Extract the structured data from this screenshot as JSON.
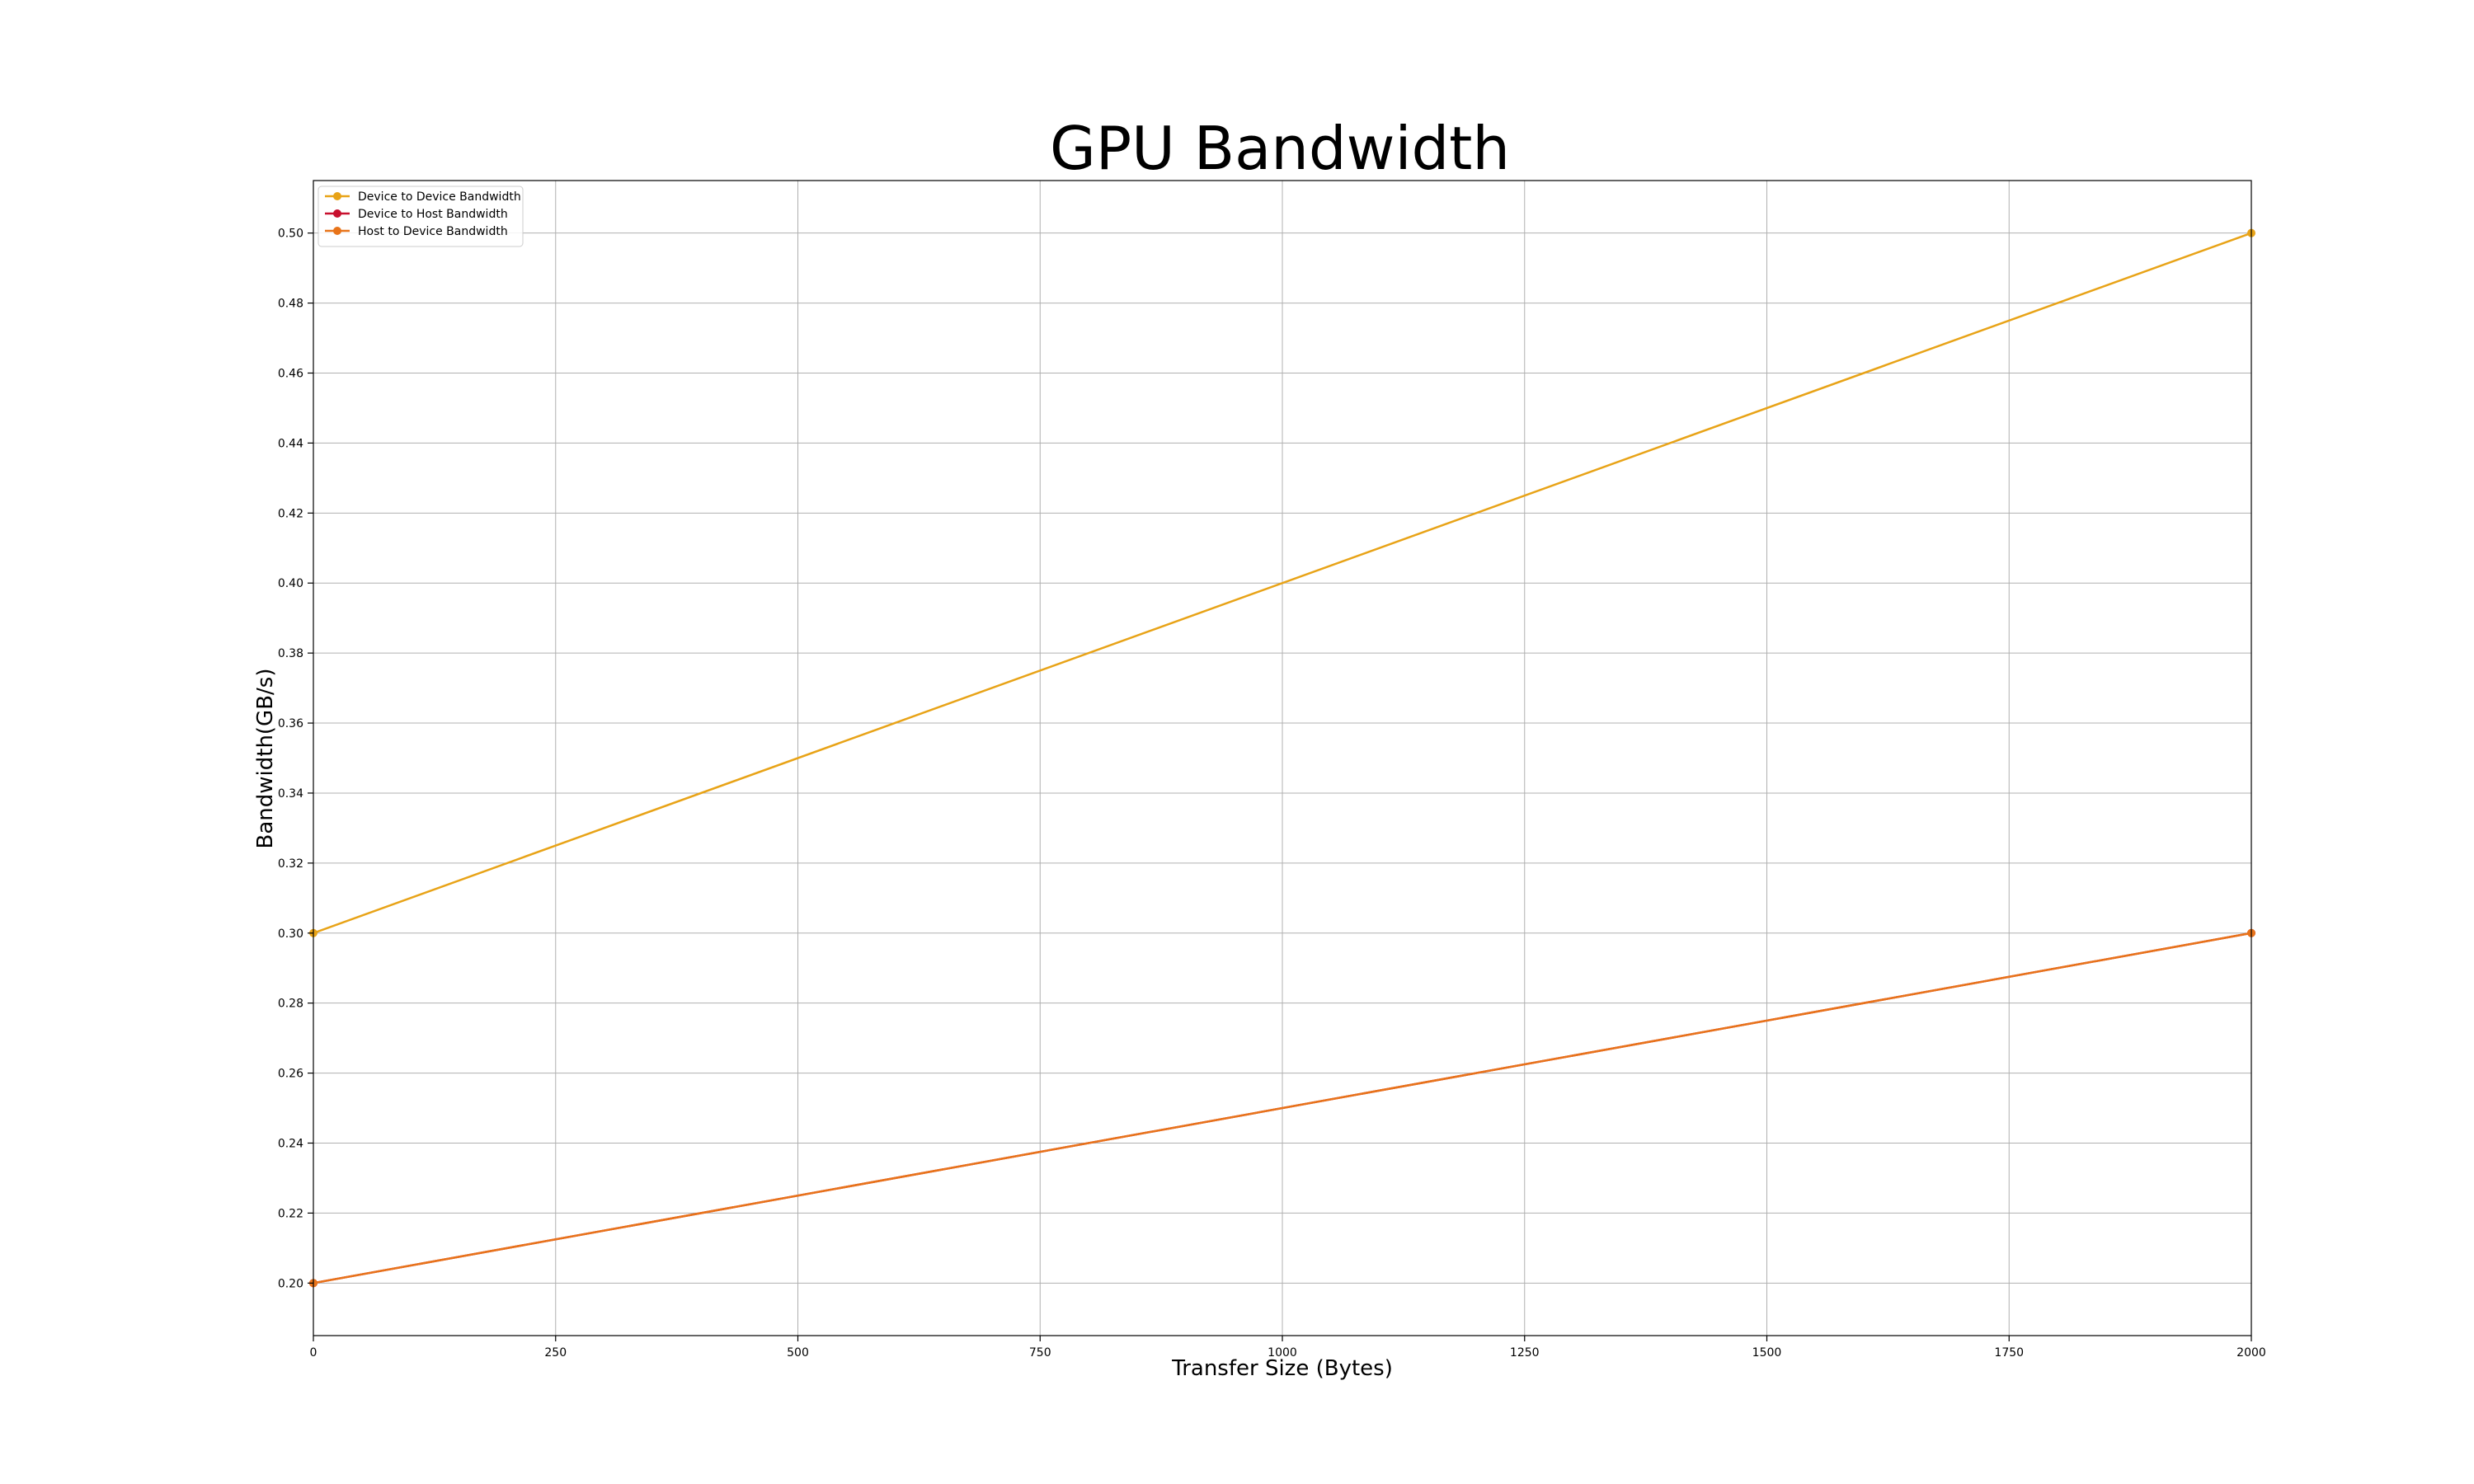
{
  "chart_data": {
    "type": "line",
    "title": "GPU Bandwidth",
    "xlabel": "Transfer Size (Bytes)",
    "ylabel": "Bandwidth(GB/s)",
    "xlim": [
      0,
      2000
    ],
    "ylim": [
      0.185,
      0.515
    ],
    "xticks": [
      0,
      250,
      500,
      750,
      1000,
      1250,
      1500,
      1750,
      2000
    ],
    "yticks": [
      0.2,
      0.22,
      0.24,
      0.26,
      0.28,
      0.3,
      0.32,
      0.34,
      0.36,
      0.38,
      0.4,
      0.42,
      0.44,
      0.46,
      0.48,
      0.5
    ],
    "grid": true,
    "legend_position": "top-left",
    "series": [
      {
        "name": "Device to Device Bandwidth",
        "color": "#e8a317",
        "x": [
          0,
          2000
        ],
        "y": [
          0.3,
          0.5
        ]
      },
      {
        "name": "Device to Host Bandwidth",
        "color": "#c8102e",
        "x": [
          0,
          2000
        ],
        "y": [
          0.2,
          0.3
        ]
      },
      {
        "name": "Host to Device Bandwidth",
        "color": "#e8741a",
        "x": [
          0,
          2000
        ],
        "y": [
          0.2,
          0.3
        ]
      }
    ]
  }
}
